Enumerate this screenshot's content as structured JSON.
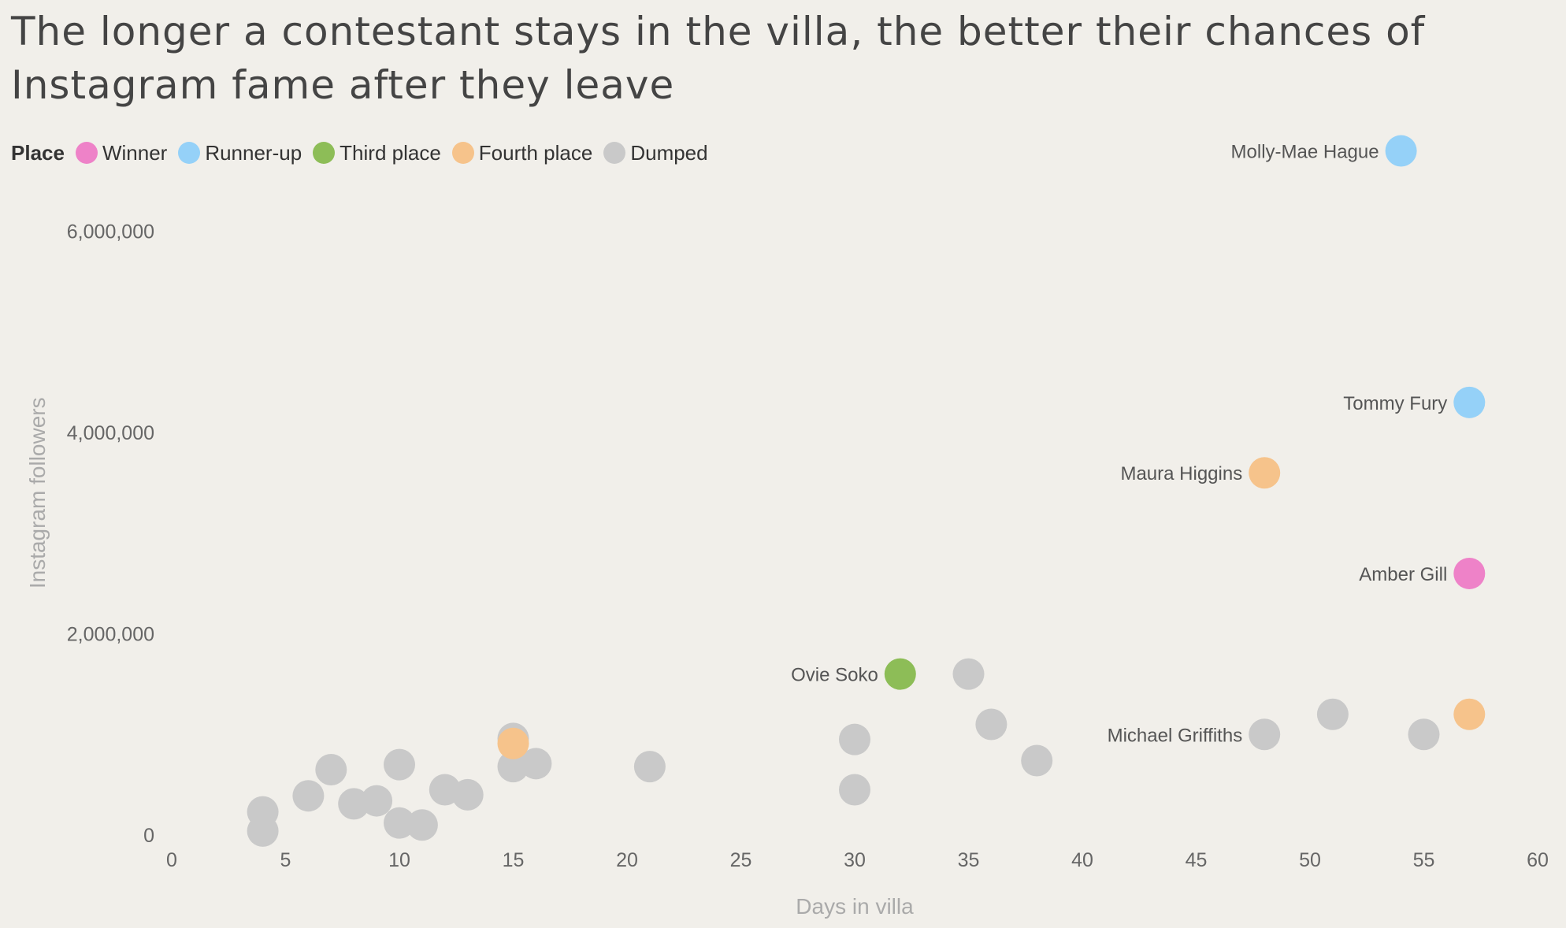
{
  "chart_data": {
    "type": "scatter",
    "title": "The longer a contestant stays in the villa, the better their chances of Instagram fame after they leave",
    "xlabel": "Days in villa",
    "ylabel": "Instagram followers",
    "xlim": [
      0,
      60
    ],
    "ylim": [
      0,
      7000000
    ],
    "xticks": [
      0,
      5,
      10,
      15,
      20,
      25,
      30,
      35,
      40,
      45,
      50,
      55,
      60
    ],
    "yticks": [
      0,
      2000000,
      4000000,
      6000000
    ],
    "ytick_labels": [
      "0",
      "2,000,000",
      "4,000,000",
      "6,000,000"
    ],
    "grid": false,
    "legend": {
      "title": "Place",
      "position": "top-left",
      "entries": [
        {
          "key": "winner",
          "label": "Winner",
          "color": "#ee82c8"
        },
        {
          "key": "runner_up",
          "label": "Runner-up",
          "color": "#95d1f8"
        },
        {
          "key": "third",
          "label": "Third place",
          "color": "#8dbd57"
        },
        {
          "key": "fourth",
          "label": "Fourth place",
          "color": "#f6c38b"
        },
        {
          "key": "dumped",
          "label": "Dumped",
          "color": "#c9c9c9"
        }
      ]
    },
    "points": [
      {
        "x": 4,
        "y": 230000,
        "place": "dumped"
      },
      {
        "x": 4,
        "y": 40000,
        "place": "dumped"
      },
      {
        "x": 6,
        "y": 390000,
        "place": "dumped"
      },
      {
        "x": 7,
        "y": 650000,
        "place": "dumped"
      },
      {
        "x": 8,
        "y": 310000,
        "place": "dumped"
      },
      {
        "x": 9,
        "y": 340000,
        "place": "dumped"
      },
      {
        "x": 10,
        "y": 700000,
        "place": "dumped"
      },
      {
        "x": 10,
        "y": 120000,
        "place": "dumped"
      },
      {
        "x": 11,
        "y": 100000,
        "place": "dumped"
      },
      {
        "x": 12,
        "y": 450000,
        "place": "dumped"
      },
      {
        "x": 13,
        "y": 400000,
        "place": "dumped"
      },
      {
        "x": 15,
        "y": 910000,
        "place": "fourth"
      },
      {
        "x": 15,
        "y": 960000,
        "place": "dumped"
      },
      {
        "x": 15,
        "y": 680000,
        "place": "dumped"
      },
      {
        "x": 16,
        "y": 710000,
        "place": "dumped"
      },
      {
        "x": 21,
        "y": 680000,
        "place": "dumped"
      },
      {
        "x": 30,
        "y": 950000,
        "place": "dumped"
      },
      {
        "x": 30,
        "y": 450000,
        "place": "dumped"
      },
      {
        "x": 32,
        "y": 1600000,
        "place": "third",
        "label": "Ovie Soko"
      },
      {
        "x": 35,
        "y": 1600000,
        "place": "dumped"
      },
      {
        "x": 36,
        "y": 1100000,
        "place": "dumped"
      },
      {
        "x": 38,
        "y": 740000,
        "place": "dumped"
      },
      {
        "x": 48,
        "y": 1000000,
        "place": "dumped",
        "label": "Michael Griffiths"
      },
      {
        "x": 48,
        "y": 3600000,
        "place": "fourth",
        "label": "Maura Higgins"
      },
      {
        "x": 51,
        "y": 1200000,
        "place": "dumped"
      },
      {
        "x": 54,
        "y": 6800000,
        "place": "runner_up",
        "label": "Molly-Mae Hague"
      },
      {
        "x": 55,
        "y": 1000000,
        "place": "dumped"
      },
      {
        "x": 57,
        "y": 1200000,
        "place": "fourth"
      },
      {
        "x": 57,
        "y": 2600000,
        "place": "winner",
        "label": "Amber Gill"
      },
      {
        "x": 57,
        "y": 4300000,
        "place": "runner_up",
        "label": "Tommy Fury"
      }
    ]
  }
}
